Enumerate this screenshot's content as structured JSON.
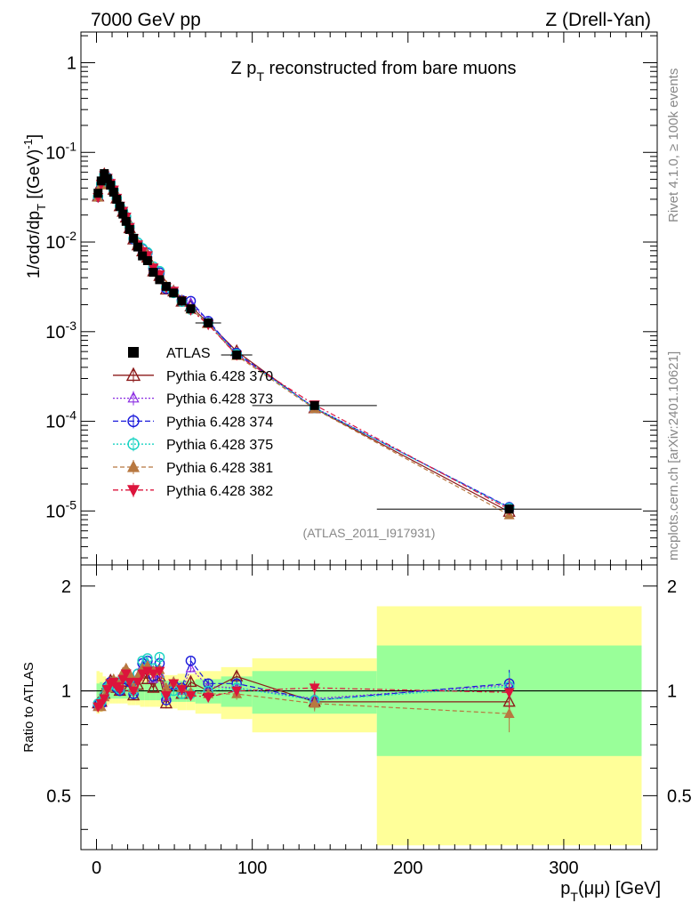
{
  "header": {
    "left": "7000 GeV pp",
    "right": "Z (Drell-Yan)",
    "plot_title_main": "Z p",
    "plot_title_sub": "T",
    "plot_title_rest": " reconstructed from bare muons",
    "analysis_id": "(ATLAS_2011_I917931)"
  },
  "side": {
    "rivet": "Rivet 4.1.0, ≥ 100k events",
    "mcplots": "mcplots.cern.ch [arXiv:2401.10621]"
  },
  "axes": {
    "ylabel_top": "1/σdσ/dp_T [(GeV)^-1]",
    "ylabel_top_parts": {
      "a": "1/σdσ/dp",
      "b": "T",
      "c": " [(GeV)",
      "d": "-1",
      "e": "]"
    },
    "ylabel_bottom": "Ratio to ATLAS",
    "xlabel_parts": {
      "a": "p",
      "b": "T",
      "c": "(μμ) [GeV]"
    },
    "x_ticks": [
      "0",
      "100",
      "200",
      "300"
    ],
    "y_top_ticks": [
      {
        "base": "1",
        "exp": ""
      },
      {
        "base": "10",
        "exp": "-1"
      },
      {
        "base": "10",
        "exp": "-2"
      },
      {
        "base": "10",
        "exp": "-3"
      },
      {
        "base": "10",
        "exp": "-4"
      },
      {
        "base": "10",
        "exp": "-5"
      }
    ],
    "y_ratio_ticks": [
      "2",
      "1",
      "0.5"
    ]
  },
  "legend": [
    {
      "label": "ATLAS",
      "color": "#000000",
      "marker": "square-filled",
      "dash": ""
    },
    {
      "label": "Pythia 6.428 370",
      "color": "#8b1a1a",
      "marker": "triangle-open",
      "dash": ""
    },
    {
      "label": "Pythia 6.428 373",
      "color": "#8a2be2",
      "marker": "triangle-open-small",
      "dash": "2,2"
    },
    {
      "label": "Pythia 6.428 374",
      "color": "#1a1adb",
      "marker": "circle-open",
      "dash": "6,3"
    },
    {
      "label": "Pythia 6.428 375",
      "color": "#1ad3c3",
      "marker": "circle-open",
      "dash": "2,2"
    },
    {
      "label": "Pythia 6.428 381",
      "color": "#b87840",
      "marker": "triangle-filled",
      "dash": "5,3"
    },
    {
      "label": "Pythia 6.428 382",
      "color": "#dc143c",
      "marker": "triangle-down-filled",
      "dash": "6,3,2,3"
    }
  ],
  "chart_data": {
    "type": "scatter",
    "title": "Z pT reconstructed from bare muons",
    "xlabel": "pT(μμ) [GeV]",
    "ylabel": "1/σdσ/dpT [(GeV)^-1]",
    "xlim": [
      -10,
      360
    ],
    "ylim": [
      2.5e-06,
      2.2
    ],
    "ratio_ylim": [
      0.35,
      2.3
    ],
    "bins": [
      [
        0,
        2
      ],
      [
        2,
        4
      ],
      [
        4,
        6
      ],
      [
        6,
        8
      ],
      [
        8,
        10
      ],
      [
        10,
        12
      ],
      [
        12,
        14
      ],
      [
        14,
        16
      ],
      [
        16,
        18
      ],
      [
        18,
        20
      ],
      [
        20,
        22.5
      ],
      [
        22.5,
        25
      ],
      [
        25,
        28
      ],
      [
        28,
        31
      ],
      [
        31,
        34.5
      ],
      [
        34.5,
        38.5
      ],
      [
        38.5,
        42.5
      ],
      [
        42.5,
        47
      ],
      [
        47,
        52
      ],
      [
        52,
        57.5
      ],
      [
        57.5,
        63.5
      ],
      [
        63.5,
        80
      ],
      [
        80,
        100
      ],
      [
        100,
        180
      ],
      [
        180,
        350
      ]
    ],
    "x": [
      1,
      3,
      5,
      7,
      9,
      11,
      13,
      15,
      17,
      19,
      21.25,
      23.75,
      26.5,
      29.5,
      32.75,
      36.5,
      40.5,
      44.75,
      49.5,
      54.75,
      60.5,
      71.75,
      90,
      140,
      265
    ],
    "atlas": [
      0.035,
      0.048,
      0.058,
      0.051,
      0.043,
      0.036,
      0.03,
      0.025,
      0.0205,
      0.017,
      0.0138,
      0.011,
      0.0088,
      0.007,
      0.0062,
      0.0046,
      0.0038,
      0.0032,
      0.0027,
      0.0022,
      0.0018,
      0.00125,
      0.00055,
      0.00015,
      1.05e-05
    ],
    "band_inner": [
      0.05,
      0.06,
      0.05,
      0.05,
      0.05,
      0.05,
      0.05,
      0.05,
      0.05,
      0.05,
      0.06,
      0.06,
      0.06,
      0.06,
      0.06,
      0.06,
      0.06,
      0.07,
      0.07,
      0.07,
      0.07,
      0.08,
      0.1,
      0.14,
      0.35
    ],
    "band_outer": [
      0.14,
      0.13,
      0.1,
      0.09,
      0.08,
      0.08,
      0.08,
      0.08,
      0.08,
      0.08,
      0.09,
      0.09,
      0.09,
      0.1,
      0.1,
      0.1,
      0.1,
      0.11,
      0.11,
      0.12,
      0.12,
      0.14,
      0.17,
      0.24,
      0.75
    ],
    "series": [
      {
        "name": "Pythia 6.428 370",
        "ratio": [
          0.92,
          0.93,
          0.98,
          1.04,
          1.07,
          1.06,
          1.02,
          1.0,
          1.06,
          1.1,
          1.03,
          0.97,
          1.04,
          1.12,
          1.08,
          1.02,
          1.1,
          0.92,
          1.04,
          0.98,
          1.06,
          1.0,
          1.1,
          0.93,
          0.93
        ]
      },
      {
        "name": "Pythia 6.428 373",
        "ratio": [
          0.9,
          0.92,
          0.96,
          1.03,
          1.06,
          1.07,
          1.04,
          1.02,
          1.1,
          1.12,
          1.08,
          1.0,
          1.1,
          1.18,
          1.2,
          1.08,
          1.12,
          0.96,
          1.06,
          1.0,
          1.16,
          1.03,
          1.02,
          0.95,
          1.04
        ]
      },
      {
        "name": "Pythia 6.428 374",
        "ratio": [
          0.91,
          0.92,
          0.97,
          1.03,
          1.06,
          1.06,
          1.02,
          1.0,
          1.08,
          1.12,
          1.06,
          0.98,
          1.12,
          1.2,
          1.22,
          1.1,
          1.2,
          0.94,
          1.04,
          1.02,
          1.22,
          1.05,
          1.05,
          0.94,
          1.05
        ]
      },
      {
        "name": "Pythia 6.428 375",
        "ratio": [
          0.92,
          0.93,
          0.97,
          1.02,
          1.05,
          1.06,
          1.03,
          1.01,
          1.09,
          1.13,
          1.08,
          1.0,
          1.12,
          1.22,
          1.24,
          1.16,
          1.25,
          0.98,
          1.0,
          0.98,
          0.98,
          1.0,
          1.02,
          0.94,
          1.03
        ]
      },
      {
        "name": "Pythia 6.428 381",
        "ratio": [
          0.9,
          0.9,
          0.96,
          1.02,
          1.06,
          1.08,
          1.06,
          1.04,
          1.13,
          1.16,
          1.12,
          1.02,
          1.1,
          1.16,
          1.18,
          1.14,
          1.15,
          1.02,
          1.06,
          1.02,
          0.99,
          0.98,
          0.98,
          0.92,
          0.86
        ]
      },
      {
        "name": "Pythia 6.428 382",
        "ratio": [
          0.9,
          0.92,
          0.95,
          1.01,
          1.05,
          1.06,
          1.03,
          1.01,
          1.08,
          1.12,
          1.06,
          1.0,
          1.06,
          1.12,
          1.14,
          1.12,
          1.14,
          0.97,
          1.05,
          1.01,
          0.97,
          0.96,
          1.0,
          1.02,
          0.99
        ]
      }
    ]
  }
}
